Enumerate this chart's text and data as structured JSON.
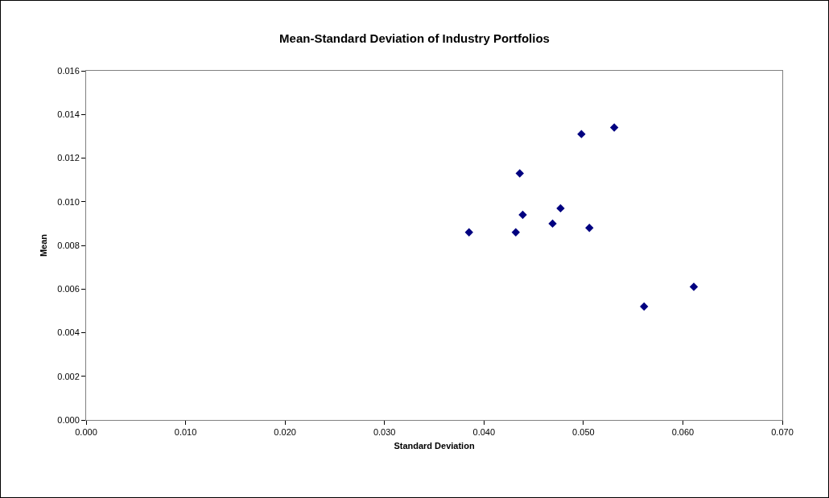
{
  "chart_data": {
    "type": "scatter",
    "title": "Mean-Standard Deviation of Industry Portfolios",
    "xlabel": "Standard Deviation",
    "ylabel": "Mean",
    "x": [
      0.0385,
      0.0432,
      0.0436,
      0.0439,
      0.0469,
      0.0477,
      0.0498,
      0.0506,
      0.0531,
      0.0561,
      0.0611
    ],
    "series": [
      {
        "color": "#000080",
        "values": [
          0.0086,
          0.0086,
          0.0113,
          0.0094,
          0.009,
          0.0097,
          0.0131,
          0.0088,
          0.0134,
          0.0052,
          0.0061
        ]
      }
    ],
    "xlim": [
      0,
      0.07
    ],
    "xticks": [
      {
        "value": 0,
        "label": "0.000"
      },
      {
        "value": 0.01,
        "label": "0.010"
      },
      {
        "value": 0.02,
        "label": "0.020"
      },
      {
        "value": 0.03,
        "label": "0.030"
      },
      {
        "value": 0.04,
        "label": "0.040"
      },
      {
        "value": 0.05,
        "label": "0.050"
      },
      {
        "value": 0.06,
        "label": "0.060"
      },
      {
        "value": 0.07,
        "label": "0.070"
      }
    ],
    "ylim": [
      0,
      0.016
    ],
    "yticks": [
      {
        "value": 0,
        "label": "0.000"
      },
      {
        "value": 0.002,
        "label": "0.002"
      },
      {
        "value": 0.004,
        "label": "0.004"
      },
      {
        "value": 0.006,
        "label": "0.006"
      },
      {
        "value": 0.008,
        "label": "0.008"
      },
      {
        "value": 0.01,
        "label": "0.010"
      },
      {
        "value": 0.012,
        "label": "0.012"
      },
      {
        "value": 0.014,
        "label": "0.014"
      },
      {
        "value": 0.016,
        "label": "0.016"
      }
    ],
    "marker": "diamond"
  }
}
